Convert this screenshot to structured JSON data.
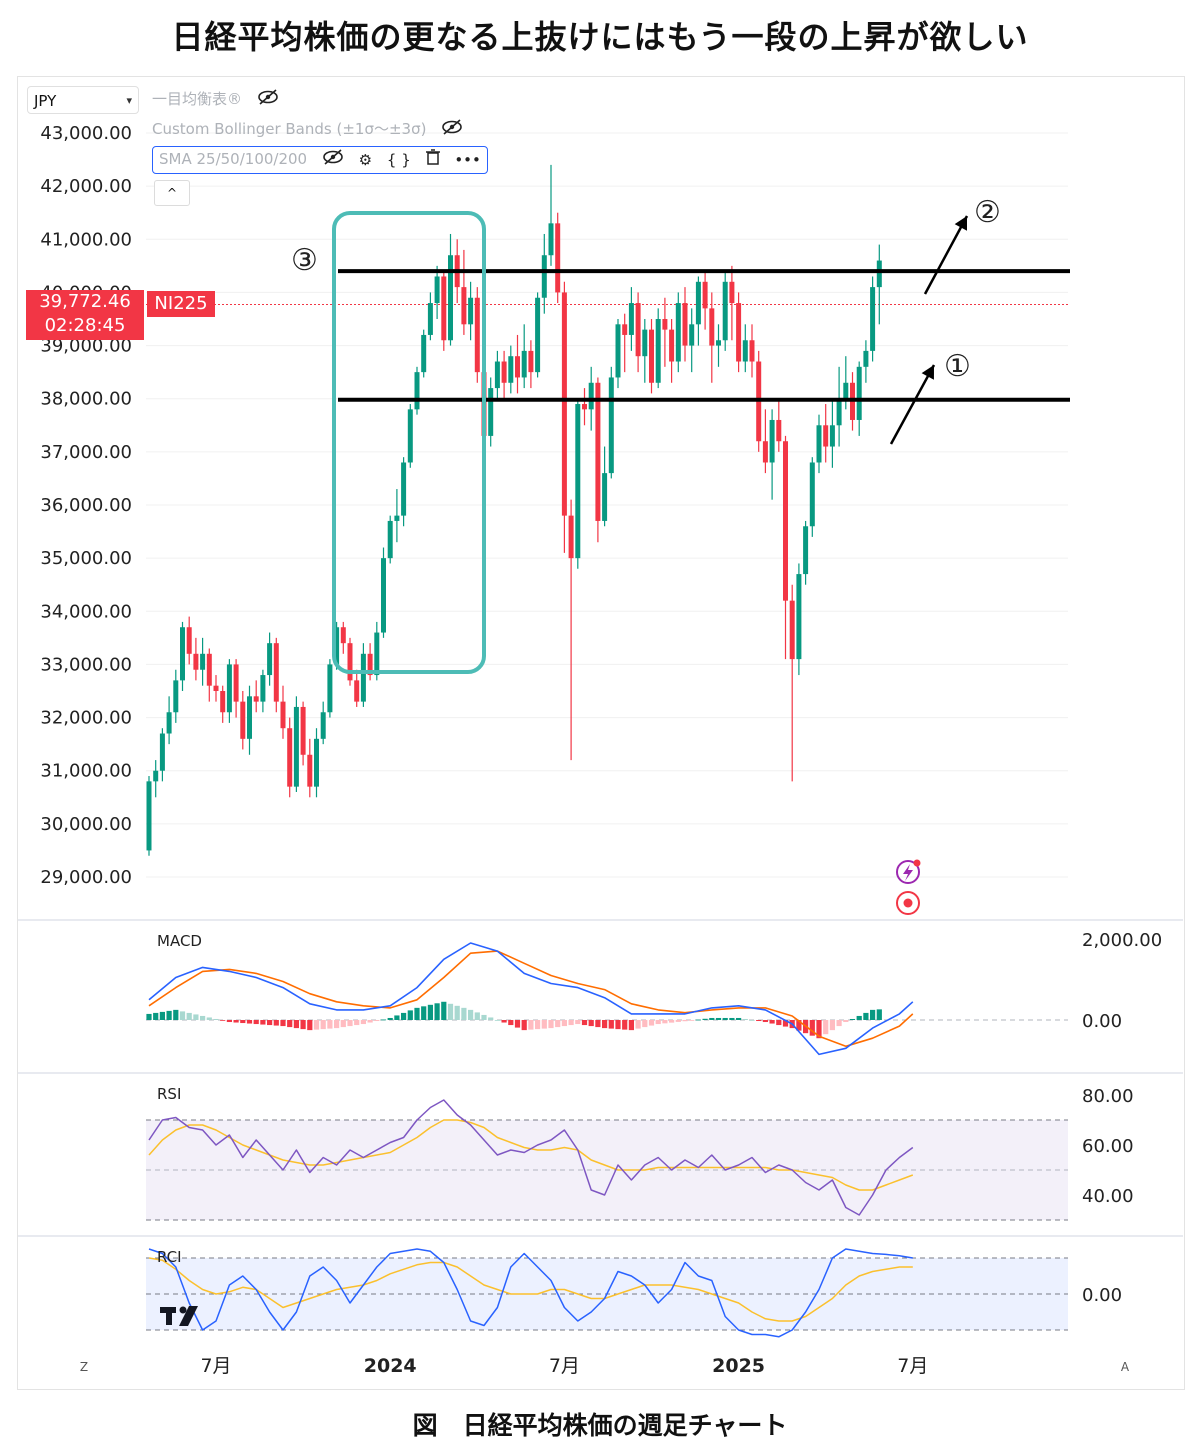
{
  "title": "日経平均株価の更なる上抜けにはもう一段の上昇が欲しい",
  "caption": "図　日経平均株価の週足チャート",
  "toolbar": {
    "currency": "JPY",
    "indicators": [
      {
        "label": "一目均衡表®",
        "icon": "eye-off-icon"
      },
      {
        "label": "Custom Bollinger Bands (±1σ〜±3σ)",
        "icon": "eye-off-icon"
      },
      {
        "label": "SMA 25/50/100/200",
        "icon": "eye-off-icon",
        "selected": true
      }
    ],
    "tools": [
      "eye-off-icon",
      "settings-icon",
      "code-icon",
      "trash-icon",
      "more-icon"
    ],
    "tool_glyphs": [
      "⊘",
      "⚙",
      "{ }",
      "🗑",
      "•••"
    ],
    "collapse": "^"
  },
  "price_badge": {
    "price": "39,772.46",
    "countdown": "02:28:45",
    "symbol": "NI225",
    "color": "#f23645"
  },
  "colors": {
    "up": "#089981",
    "down": "#f23645",
    "grid": "#f0f0f0",
    "macd": "#2962ff",
    "signal": "#ff6d00",
    "rsi": "#7e57c2",
    "rsi_ma": "#fbc02d",
    "rci": "#2962ff",
    "rci2": "#fbc02d",
    "box": "#4dbcb6"
  },
  "annotations": [
    {
      "mark": "①",
      "meaning": "arrow from support up"
    },
    {
      "mark": "②",
      "meaning": "arrow breaking resistance"
    },
    {
      "mark": "③",
      "meaning": "previous rally box"
    }
  ],
  "x_labels": [
    {
      "label": "7月",
      "bold": false,
      "week": 10
    },
    {
      "label": "2024",
      "bold": true,
      "week": 36
    },
    {
      "label": "7月",
      "bold": false,
      "week": 62
    },
    {
      "label": "2025",
      "bold": true,
      "week": 88
    },
    {
      "label": "7月",
      "bold": false,
      "week": 114
    }
  ],
  "bottom_icons": [
    "Z",
    "A"
  ],
  "chart_data": [
    {
      "type": "candlestick",
      "pane": "price",
      "y_ticks": [
        "43,000.00",
        "42,000.00",
        "41,000.00",
        "40,000.00",
        "39,000.00",
        "38,000.00",
        "37,000.00",
        "36,000.00",
        "35,000.00",
        "34,000.00",
        "33,000.00",
        "32,000.00",
        "31,000.00",
        "30,000.00",
        "29,000.00"
      ],
      "ylim": [
        28200,
        43600
      ],
      "horizontal_lines": [
        40400,
        37980
      ],
      "last_price": 39772.46,
      "candles": [
        [
          29500,
          30800,
          30900,
          29400
        ],
        [
          30800,
          31000,
          31200,
          30500
        ],
        [
          31000,
          31700,
          31800,
          30800
        ],
        [
          31700,
          32100,
          32400,
          31500
        ],
        [
          32100,
          32700,
          32900,
          31900
        ],
        [
          32700,
          33700,
          33800,
          32500
        ],
        [
          33700,
          33200,
          33900,
          33000
        ],
        [
          33200,
          32900,
          33500,
          32700
        ],
        [
          32900,
          33200,
          33500,
          32600
        ],
        [
          33200,
          32600,
          33300,
          32300
        ],
        [
          32600,
          32500,
          32800,
          32300
        ],
        [
          32500,
          32100,
          32600,
          31900
        ],
        [
          32100,
          33000,
          33100,
          31900
        ],
        [
          33000,
          32300,
          33100,
          32000
        ],
        [
          32300,
          31600,
          32500,
          31400
        ],
        [
          31600,
          32400,
          32600,
          31300
        ],
        [
          32400,
          32300,
          32700,
          32100
        ],
        [
          32300,
          32800,
          32900,
          32100
        ],
        [
          32800,
          33400,
          33600,
          32600
        ],
        [
          33400,
          32300,
          33500,
          32100
        ],
        [
          32300,
          31800,
          32600,
          31600
        ],
        [
          31800,
          30700,
          32000,
          30500
        ],
        [
          30700,
          32200,
          32400,
          30600
        ],
        [
          32200,
          31300,
          32300,
          31100
        ],
        [
          31300,
          30700,
          31600,
          30500
        ],
        [
          30700,
          31600,
          31800,
          30500
        ],
        [
          31600,
          32100,
          32300,
          31500
        ],
        [
          32100,
          33000,
          33100,
          32000
        ],
        [
          33000,
          33700,
          33800,
          32900
        ],
        [
          33700,
          33400,
          33800,
          33200
        ],
        [
          33400,
          32700,
          33500,
          32600
        ],
        [
          32700,
          32300,
          32900,
          32200
        ],
        [
          32300,
          33200,
          33400,
          32200
        ],
        [
          33200,
          32800,
          33400,
          32700
        ],
        [
          32800,
          33600,
          33800,
          32700
        ],
        [
          33600,
          35000,
          35200,
          33500
        ],
        [
          35000,
          35700,
          35800,
          34900
        ],
        [
          35700,
          35800,
          36300,
          35300
        ],
        [
          35800,
          36800,
          36900,
          35600
        ],
        [
          36800,
          37800,
          37900,
          36700
        ],
        [
          37800,
          38500,
          38600,
          37700
        ],
        [
          38500,
          39200,
          39300,
          38400
        ],
        [
          39200,
          39800,
          40000,
          39100
        ],
        [
          39800,
          40300,
          40500,
          39500
        ],
        [
          40300,
          39100,
          40400,
          38900
        ],
        [
          39100,
          40700,
          41100,
          39000
        ],
        [
          40700,
          40100,
          41000,
          39800
        ],
        [
          40100,
          39400,
          40800,
          39200
        ],
        [
          39400,
          39900,
          40200,
          39100
        ],
        [
          39900,
          38500,
          40100,
          38300
        ],
        [
          38500,
          37300,
          38600,
          36800
        ],
        [
          37300,
          38200,
          38400,
          37100
        ],
        [
          38200,
          38700,
          38900,
          38000
        ],
        [
          38700,
          38300,
          38900,
          38000
        ],
        [
          38300,
          38800,
          39000,
          38100
        ],
        [
          38800,
          38400,
          39200,
          38100
        ],
        [
          38400,
          38900,
          39400,
          38200
        ],
        [
          38900,
          38500,
          39100,
          38200
        ],
        [
          38500,
          39900,
          40000,
          38400
        ],
        [
          39900,
          40700,
          41100,
          39600
        ],
        [
          40700,
          41300,
          42400,
          40500
        ],
        [
          41300,
          40000,
          41500,
          39800
        ],
        [
          40000,
          35800,
          40200,
          35100
        ],
        [
          35800,
          35000,
          36100,
          31200
        ],
        [
          35000,
          37900,
          38000,
          34800
        ],
        [
          37900,
          37800,
          38200,
          37500
        ],
        [
          37800,
          38300,
          38600,
          37400
        ],
        [
          38300,
          35700,
          38400,
          35300
        ],
        [
          35700,
          36600,
          37100,
          35600
        ],
        [
          36600,
          38400,
          38600,
          36500
        ],
        [
          38400,
          39400,
          39500,
          38200
        ],
        [
          39400,
          39200,
          39600,
          38500
        ],
        [
          39200,
          39800,
          40100,
          38900
        ],
        [
          39800,
          38800,
          40000,
          38500
        ],
        [
          38800,
          39300,
          39500,
          38300
        ],
        [
          39300,
          38300,
          39500,
          38100
        ],
        [
          38300,
          39500,
          39700,
          38200
        ],
        [
          39500,
          39300,
          39900,
          38600
        ],
        [
          39300,
          38700,
          39500,
          38300
        ],
        [
          38700,
          39800,
          40000,
          38500
        ],
        [
          39800,
          39000,
          40100,
          38700
        ],
        [
          39000,
          39400,
          39700,
          38500
        ],
        [
          39400,
          40200,
          40300,
          39000
        ],
        [
          40200,
          39700,
          40400,
          39300
        ],
        [
          39700,
          39000,
          40000,
          38300
        ],
        [
          39000,
          39100,
          39400,
          38600
        ],
        [
          39100,
          40200,
          40400,
          38900
        ],
        [
          40200,
          39800,
          40500,
          39100
        ],
        [
          39800,
          38700,
          40000,
          38500
        ],
        [
          38700,
          39100,
          39400,
          38500
        ],
        [
          39100,
          38700,
          39400,
          38400
        ],
        [
          38700,
          37200,
          38900,
          37000
        ],
        [
          37200,
          36800,
          37800,
          36600
        ],
        [
          36800,
          37600,
          37800,
          36100
        ],
        [
          37600,
          37200,
          38000,
          37000
        ],
        [
          37200,
          34200,
          37300,
          33100
        ],
        [
          34200,
          33100,
          34500,
          30800
        ],
        [
          33100,
          34700,
          34900,
          32800
        ],
        [
          34700,
          35600,
          35700,
          34500
        ],
        [
          35600,
          36800,
          36900,
          35400
        ],
        [
          36800,
          37500,
          37700,
          36600
        ],
        [
          37500,
          37100,
          37900,
          36800
        ],
        [
          37100,
          37500,
          38000,
          36700
        ],
        [
          37500,
          38000,
          38600,
          37100
        ],
        [
          38000,
          38300,
          38800,
          37800
        ],
        [
          38300,
          37600,
          38500,
          37400
        ],
        [
          37600,
          38600,
          38700,
          37300
        ],
        [
          38600,
          38900,
          39100,
          38300
        ],
        [
          38900,
          40100,
          40300,
          38700
        ],
        [
          40100,
          40600,
          40900,
          39400
        ]
      ]
    },
    {
      "type": "line+bar",
      "pane": "macd",
      "name": "MACD",
      "y_ticks": [
        "2,000.00",
        "0.00"
      ],
      "ylim": [
        -1050,
        2050
      ],
      "x": [
        0,
        4,
        8,
        12,
        16,
        20,
        24,
        28,
        32,
        36,
        40,
        44,
        48,
        52,
        56,
        60,
        64,
        68,
        72,
        76,
        80,
        84,
        88,
        92,
        96,
        100,
        104,
        108,
        112,
        114
      ],
      "macd": [
        500,
        1050,
        1300,
        1200,
        1050,
        800,
        400,
        250,
        250,
        350,
        800,
        1500,
        1900,
        1700,
        1150,
        900,
        800,
        550,
        150,
        150,
        150,
        300,
        350,
        250,
        -100,
        -850,
        -700,
        -200,
        150,
        450
      ],
      "signal": [
        350,
        800,
        1200,
        1250,
        1150,
        950,
        650,
        450,
        350,
        300,
        500,
        1050,
        1650,
        1700,
        1400,
        1100,
        900,
        750,
        400,
        250,
        180,
        250,
        300,
        300,
        100,
        -400,
        -650,
        -450,
        -150,
        150
      ],
      "hist_cols": [
        "#089981",
        "#a8d8d0",
        "#ffbcc1",
        "#f23645"
      ]
    },
    {
      "type": "line",
      "pane": "rsi",
      "name": "RSI",
      "y_ticks": [
        "80.00",
        "60.00",
        "40.00"
      ],
      "ylim": [
        30,
        82
      ],
      "band": [
        70,
        30
      ],
      "midline": 50,
      "x": [
        0,
        2,
        4,
        6,
        8,
        10,
        12,
        14,
        16,
        18,
        20,
        22,
        24,
        26,
        28,
        30,
        32,
        34,
        36,
        38,
        40,
        42,
        44,
        46,
        48,
        50,
        52,
        54,
        56,
        58,
        60,
        62,
        64,
        66,
        68,
        70,
        72,
        74,
        76,
        78,
        80,
        82,
        84,
        86,
        88,
        90,
        92,
        94,
        96,
        98,
        100,
        102,
        104,
        106,
        108,
        110,
        112,
        114
      ],
      "rsi": [
        62,
        70,
        71,
        67,
        66,
        60,
        64,
        55,
        62,
        56,
        50,
        58,
        49,
        55,
        52,
        58,
        55,
        58,
        61,
        63,
        70,
        75,
        78,
        72,
        68,
        62,
        56,
        58,
        57,
        60,
        62,
        66,
        58,
        42,
        40,
        52,
        46,
        52,
        55,
        50,
        54,
        51,
        56,
        50,
        52,
        55,
        49,
        52,
        50,
        45,
        42,
        46,
        35,
        32,
        40,
        50,
        55,
        59
      ],
      "rsi_ma": [
        56,
        62,
        66,
        68,
        68,
        66,
        63,
        60,
        58,
        56,
        54,
        53,
        52,
        52,
        53,
        54,
        55,
        56,
        57,
        60,
        63,
        67,
        70,
        70,
        69,
        67,
        63,
        61,
        59,
        58,
        58,
        59,
        58,
        54,
        52,
        50,
        50,
        50,
        51,
        51,
        51,
        51,
        51,
        51,
        51,
        51,
        51,
        50,
        50,
        49,
        48,
        47,
        44,
        42,
        42,
        44,
        46,
        48
      ]
    },
    {
      "type": "line",
      "pane": "rci",
      "name": "RCI",
      "y_ticks": [
        "0.00"
      ],
      "ylim": [
        -105,
        105
      ],
      "band": [
        80,
        -80
      ],
      "x": [
        0,
        2,
        4,
        6,
        8,
        10,
        12,
        14,
        16,
        18,
        20,
        22,
        24,
        26,
        28,
        30,
        32,
        34,
        36,
        38,
        40,
        42,
        44,
        46,
        48,
        50,
        52,
        54,
        56,
        58,
        60,
        62,
        64,
        66,
        68,
        70,
        72,
        74,
        76,
        78,
        80,
        82,
        84,
        86,
        88,
        90,
        92,
        94,
        96,
        98,
        100,
        102,
        104,
        106,
        108,
        110,
        112,
        114
      ],
      "rci": [
        100,
        90,
        60,
        -20,
        -80,
        -60,
        20,
        40,
        10,
        -40,
        -80,
        -40,
        40,
        60,
        30,
        -20,
        20,
        60,
        90,
        95,
        100,
        95,
        70,
        10,
        -60,
        -70,
        -30,
        60,
        90,
        60,
        30,
        -30,
        -60,
        -40,
        -10,
        50,
        40,
        20,
        -20,
        10,
        70,
        40,
        30,
        -50,
        -80,
        -90,
        -90,
        -95,
        -80,
        -40,
        10,
        80,
        100,
        95,
        90,
        88,
        85,
        80
      ],
      "rci2": [
        80,
        75,
        55,
        30,
        10,
        0,
        5,
        15,
        10,
        -10,
        -30,
        -20,
        -10,
        0,
        10,
        15,
        20,
        30,
        45,
        55,
        65,
        70,
        70,
        60,
        40,
        20,
        10,
        0,
        0,
        0,
        10,
        10,
        0,
        -10,
        -10,
        0,
        10,
        20,
        20,
        20,
        15,
        10,
        0,
        -10,
        -20,
        -40,
        -55,
        -60,
        -60,
        -50,
        -30,
        -10,
        20,
        40,
        50,
        55,
        60,
        60
      ]
    }
  ]
}
